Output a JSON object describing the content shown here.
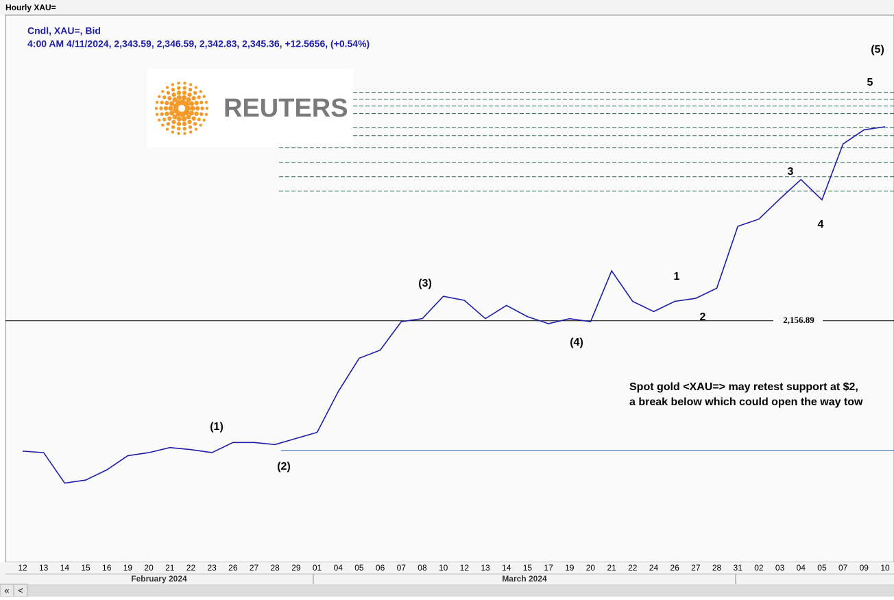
{
  "window_title": "Hourly XAU=",
  "scrollbar": {
    "buttons": [
      "«",
      "<"
    ]
  },
  "chart_data": {
    "type": "line",
    "title": "Cndl, XAU=, Bid",
    "subtitle": "4:00 AM 4/11/2024, 2,343.59, 2,346.59, 2,342.83, 2,345.36, +12.5656, (+0.54%)",
    "logo": "REUTERS",
    "categories": [
      "12",
      "13",
      "14",
      "15",
      "16",
      "19",
      "20",
      "21",
      "22",
      "23",
      "26",
      "27",
      "28",
      "29",
      "01",
      "04",
      "05",
      "06",
      "07",
      "08",
      "10",
      "12",
      "13",
      "14",
      "15",
      "17",
      "19",
      "20",
      "21",
      "22",
      "24",
      "26",
      "27",
      "28",
      "31",
      "02",
      "03",
      "04",
      "05",
      "07",
      "09",
      "10"
    ],
    "month_labels": [
      "February 2024",
      "March 2024"
    ],
    "series": [
      {
        "color": "#1c1ca8",
        "values": [
          2028.5,
          2027,
          1997,
          2000,
          2010,
          2024,
          2027,
          2032,
          2030,
          2027,
          2037,
          2037,
          2035,
          2041,
          2047,
          2087,
          2120,
          2128,
          2156,
          2159,
          2181,
          2177,
          2159,
          2172,
          2161,
          2154,
          2159,
          2156,
          2206,
          2176,
          2166,
          2176,
          2179,
          2189,
          2250,
          2257,
          2277,
          2296,
          2276,
          2331,
          2345,
          2348
        ]
      }
    ],
    "ylim": [
      1919,
      2458
    ],
    "reference_lines": [
      {
        "value": 2156.89,
        "label": "2,156.89",
        "color": "#000000"
      },
      {
        "value": 2029.2,
        "color": "#1f5fa0"
      }
    ],
    "levels": [
      2381.9,
      2375.1,
      2368.4,
      2361,
      2347.4,
      2339.3,
      2327.2,
      2313,
      2298.8,
      2284.6
    ],
    "level_color": "#2e6b4a",
    "annotations": [
      "(1)",
      "(2)",
      "(3)",
      "(4)",
      "(5)",
      "1",
      "2",
      "3",
      "4",
      "5"
    ],
    "note": [
      "Spot gold <XAU=> may retest support at $2,",
      "a break below which could open the way tow"
    ]
  }
}
